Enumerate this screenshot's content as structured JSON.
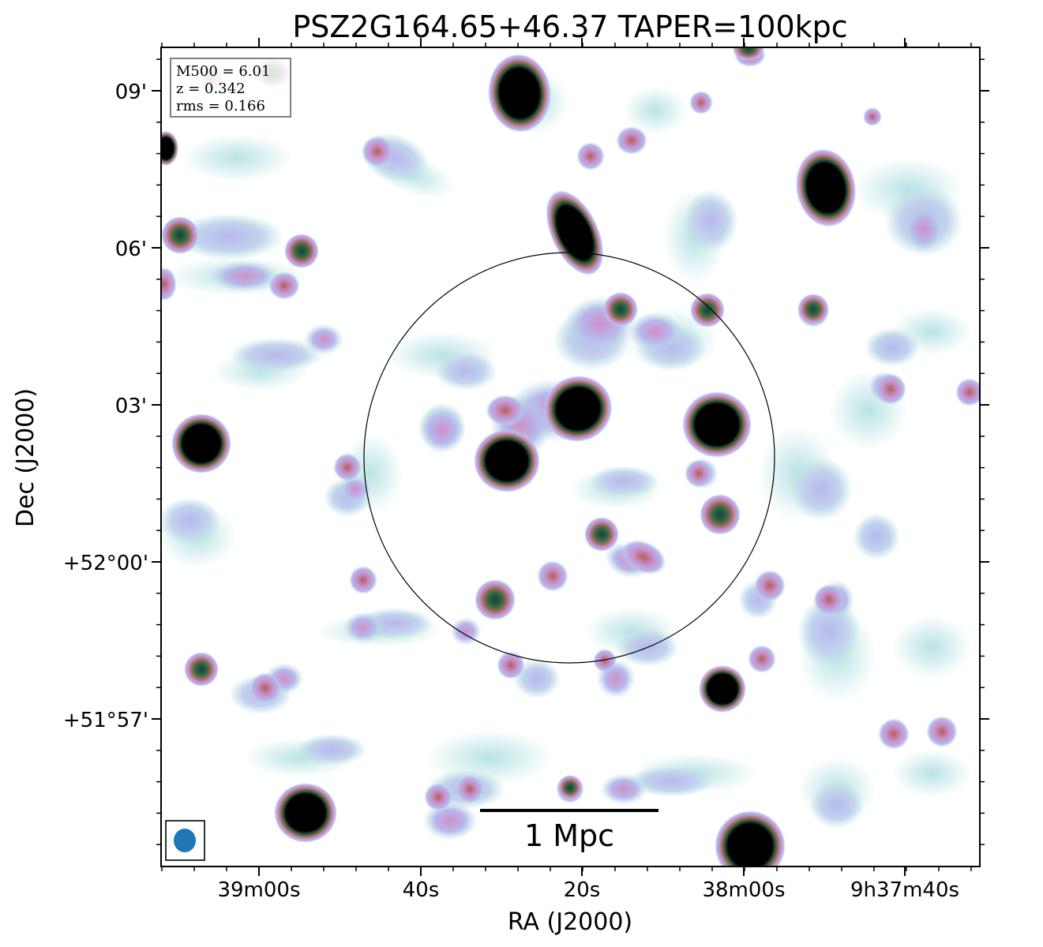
{
  "chart_data": {
    "type": "heatmap",
    "title": "PSZ2G164.65+46.37 TAPER=100kpc",
    "xlabel": "RA (J2000)",
    "ylabel": "Dec (J2000)",
    "x_ticks": [
      "39m00s",
      "40s",
      "20s",
      "38m00s",
      "9h37m40s"
    ],
    "y_ticks": [
      "09'",
      "06'",
      "03'",
      "+52°00'",
      "+51°57'"
    ],
    "info": [
      "M500 = 6.01",
      "z = 0.342",
      "rms = 0.166"
    ],
    "scalebar_label": "1 Mpc",
    "colors": {
      "faint": "#b9e3e3",
      "low": "#b7b8ec",
      "mid": "#c98fc9",
      "high": "#9a6a5a",
      "peak": "#000000",
      "beam": "#1f77b4"
    }
  }
}
